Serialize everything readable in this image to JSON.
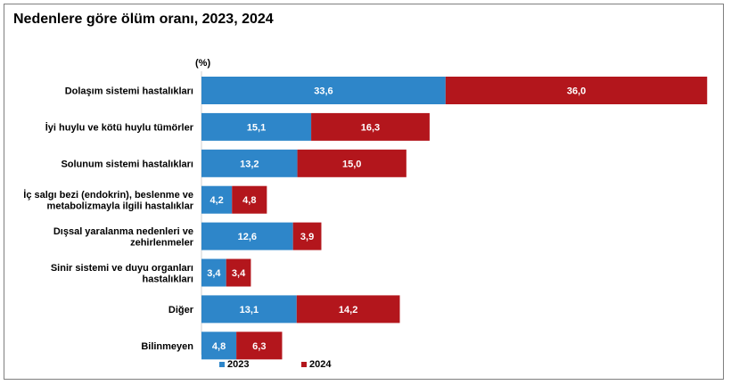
{
  "chart_data": {
    "type": "bar",
    "orientation": "horizontal",
    "stacked": true,
    "title": "Nedenlere göre ölüm oranı, 2023, 2024",
    "unit_label": "(%)",
    "categories": [
      [
        "Dolaşım sistemi hastalıkları"
      ],
      [
        "İyi huylu ve kötü huylu tümörler"
      ],
      [
        "Solunum sistemi hastalıkları"
      ],
      [
        "İç salgı bezi (endokrin), beslenme ve",
        "metabolizmayla ilgili hastalıklar"
      ],
      [
        "Dışsal yaralanma nedenleri ve",
        "zehirlenmeler"
      ],
      [
        "Sinir sistemi ve duyu organları",
        "hastalıkları"
      ],
      [
        "Diğer"
      ],
      [
        "Bilinmeyen"
      ]
    ],
    "series": [
      {
        "name": "2023",
        "color": "#2e86c9",
        "values": [
          33.6,
          15.1,
          13.2,
          4.2,
          12.6,
          3.4,
          13.1,
          4.8
        ],
        "labels": [
          "33,6",
          "15,1",
          "13,2",
          "4,2",
          "12,6",
          "3,4",
          "13,1",
          "4,8"
        ]
      },
      {
        "name": "2024",
        "color": "#b3161c",
        "values": [
          36.0,
          16.3,
          15.0,
          4.8,
          3.9,
          3.4,
          14.2,
          6.3
        ],
        "labels": [
          "36,0",
          "16,3",
          "15,0",
          "4,8",
          "3,9",
          "3,4",
          "14,2",
          "6,3"
        ]
      }
    ],
    "legend_position": "bottom",
    "grid": false
  }
}
